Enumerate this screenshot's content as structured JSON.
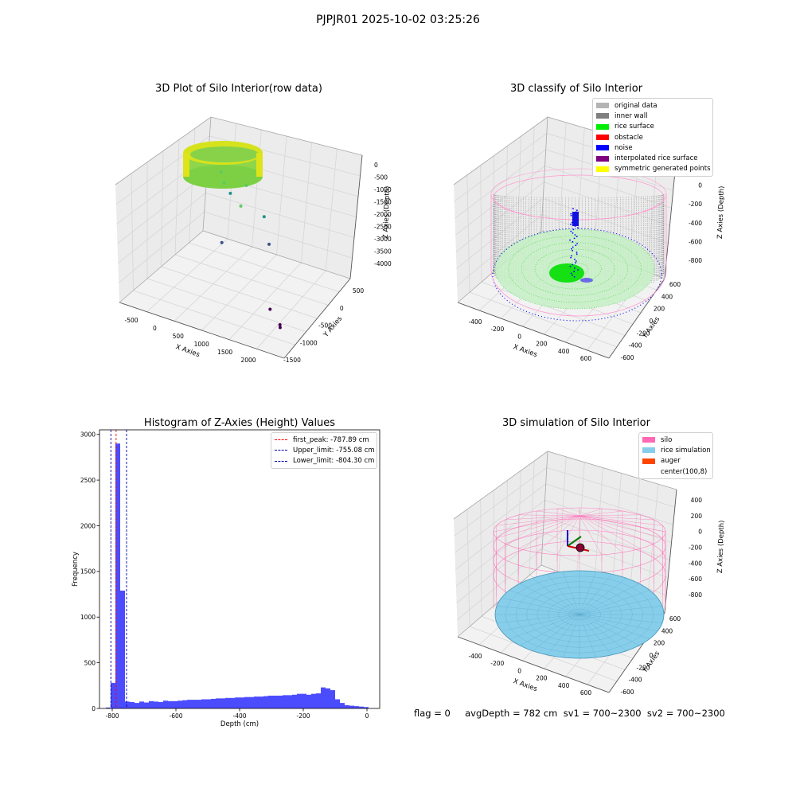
{
  "suptitle": "PJPJR01 2025-10-02 03:25:26",
  "chart_data": [
    {
      "type": "scatter",
      "projection": "3d",
      "title": "3D Plot of Silo Interior(row data)",
      "xlabel": "X Axies",
      "ylabel": "Y Axies",
      "zlabel": "Z Axies (Depth)",
      "x_ticks": [
        "-500",
        "0",
        "500",
        "1000",
        "1500",
        "2000"
      ],
      "y_ticks": [
        "500",
        "0",
        "-500",
        "-1000",
        "-1500"
      ],
      "z_ticks": [
        "0",
        "-500",
        "-1000",
        "-1500",
        "-2000",
        "-2500",
        "-3000",
        "-3500",
        "-4000"
      ],
      "xlim": [
        -600,
        2200
      ],
      "ylim": [
        -1500,
        600
      ],
      "zlim": [
        -4200,
        0
      ],
      "colormap": "viridis",
      "cylinder": {
        "cx": 0,
        "cy": 0,
        "radius": 600,
        "z_top": -300,
        "z_bottom": -800
      },
      "outliers": [
        {
          "x": 150,
          "y": 100,
          "z": -950
        },
        {
          "x": 300,
          "y": -50,
          "z": -1050
        },
        {
          "x": 500,
          "y": 200,
          "z": -1300
        },
        {
          "x": 600,
          "y": -100,
          "z": -1600
        },
        {
          "x": 250,
          "y": 150,
          "z": -1700
        },
        {
          "x": 700,
          "y": 300,
          "z": -2400
        },
        {
          "x": 300,
          "y": -200,
          "z": -3000
        },
        {
          "x": 900,
          "y": 100,
          "z": -3000
        },
        {
          "x": 1500,
          "y": -800,
          "z": -3800
        },
        {
          "x": 1800,
          "y": -1000,
          "z": -3900
        },
        {
          "x": 1800,
          "y": -1000,
          "z": -4000
        }
      ]
    },
    {
      "type": "scatter",
      "projection": "3d",
      "title": "3D classify of Silo Interior",
      "xlabel": "X Axies",
      "ylabel": "Y Axies",
      "zlabel": "Z Axies (Depth)",
      "x_ticks": [
        "-400",
        "-200",
        "0",
        "200",
        "400",
        "600"
      ],
      "y_ticks": [
        "600",
        "400",
        "200",
        "0",
        "-200",
        "-400",
        "-600"
      ],
      "z_ticks": [
        "200",
        "0",
        "-200",
        "-400",
        "-600",
        "-800"
      ],
      "xlim": [
        -500,
        700
      ],
      "ylim": [
        -650,
        650
      ],
      "zlim": [
        -900,
        300
      ],
      "legend": [
        {
          "label": "original data",
          "color": "#b4b4b4"
        },
        {
          "label": "inner wall",
          "color": "#808080"
        },
        {
          "label": "rice surface",
          "color": "#00ee00"
        },
        {
          "label": "obstacle",
          "color": "#ff0000"
        },
        {
          "label": "noise",
          "color": "#0000ff"
        },
        {
          "label": "interpolated rice surface",
          "color": "#800080"
        },
        {
          "label": "symmetric generated points",
          "color": "#ffff00"
        }
      ],
      "legend_loc": "upper right",
      "cylinder": {
        "cx": 100,
        "cy": 8,
        "radius": 600,
        "z_top": 200,
        "z_bottom": -800
      }
    },
    {
      "type": "bar",
      "title": "Histogram of Z-Axies (Height) Values",
      "xlabel": "Depth (cm)",
      "ylabel": "Frequency",
      "xlim": [
        -840,
        40
      ],
      "ylim": [
        0,
        3050
      ],
      "x_ticks": [
        -800,
        -600,
        -400,
        -200,
        0
      ],
      "y_ticks": [
        0,
        500,
        1000,
        1500,
        2000,
        2500,
        3000
      ],
      "bar_color": "#0000ff",
      "bin_width": 15,
      "bins_start": [
        -820,
        -805,
        -790,
        -775,
        -760,
        -745,
        -730,
        -715,
        -700,
        -685,
        -670,
        -655,
        -640,
        -625,
        -610,
        -595,
        -580,
        -565,
        -550,
        -535,
        -520,
        -505,
        -490,
        -475,
        -460,
        -445,
        -430,
        -415,
        -400,
        -385,
        -370,
        -355,
        -340,
        -325,
        -310,
        -295,
        -280,
        -265,
        -250,
        -235,
        -220,
        -205,
        -190,
        -175,
        -160,
        -145,
        -130,
        -115,
        -100,
        -85,
        -70,
        -55,
        -40,
        -25,
        -10
      ],
      "counts": [
        10,
        280,
        2900,
        1290,
        75,
        70,
        60,
        75,
        65,
        80,
        75,
        70,
        85,
        80,
        80,
        85,
        90,
        95,
        95,
        95,
        100,
        100,
        105,
        110,
        110,
        115,
        115,
        120,
        120,
        125,
        125,
        130,
        130,
        135,
        140,
        140,
        140,
        145,
        145,
        150,
        160,
        160,
        150,
        160,
        165,
        230,
        220,
        200,
        100,
        60,
        35,
        30,
        25,
        20,
        15
      ],
      "vlines": [
        {
          "label": "first_peak: -787.89 cm",
          "x": -787.89,
          "color": "#ff0000"
        },
        {
          "label": "Upper_limit: -755.08 cm",
          "x": -755.08,
          "color": "#0000aa"
        },
        {
          "label": "Lower_limit: -804.30 cm",
          "x": -804.3,
          "color": "#0000aa"
        }
      ],
      "legend_loc": "upper right"
    },
    {
      "type": "surface",
      "projection": "3d",
      "title": "3D simulation of Silo Interior",
      "xlabel": "X Axies",
      "ylabel": "Y Axies",
      "zlabel": "Z Axies (Depth)",
      "x_ticks": [
        "-400",
        "-200",
        "0",
        "200",
        "400",
        "600"
      ],
      "y_ticks": [
        "600",
        "400",
        "200",
        "0",
        "-200",
        "-400",
        "-600"
      ],
      "z_ticks": [
        "400",
        "200",
        "0",
        "-200",
        "-400",
        "-600",
        "-800"
      ],
      "xlim": [
        -500,
        700
      ],
      "ylim": [
        -650,
        650
      ],
      "zlim": [
        -900,
        500
      ],
      "legend": [
        {
          "label": "silo",
          "color": "#ff69b4"
        },
        {
          "label": "rice simulation",
          "color": "#87ceeb"
        },
        {
          "label": "auger",
          "color": "#ff4500"
        },
        {
          "label": "center(100,8)",
          "color": "#ffffff"
        }
      ],
      "legend_loc": "upper right",
      "center": [
        100,
        8
      ],
      "silo": {
        "radius": 600,
        "z_top": 200,
        "z_bottom": -800
      },
      "rice_depth": -782
    }
  ],
  "footer": {
    "text": "flag = 0     avgDepth = 782 cm  sv1 = 700~2300  sv2 = 700~2300"
  }
}
